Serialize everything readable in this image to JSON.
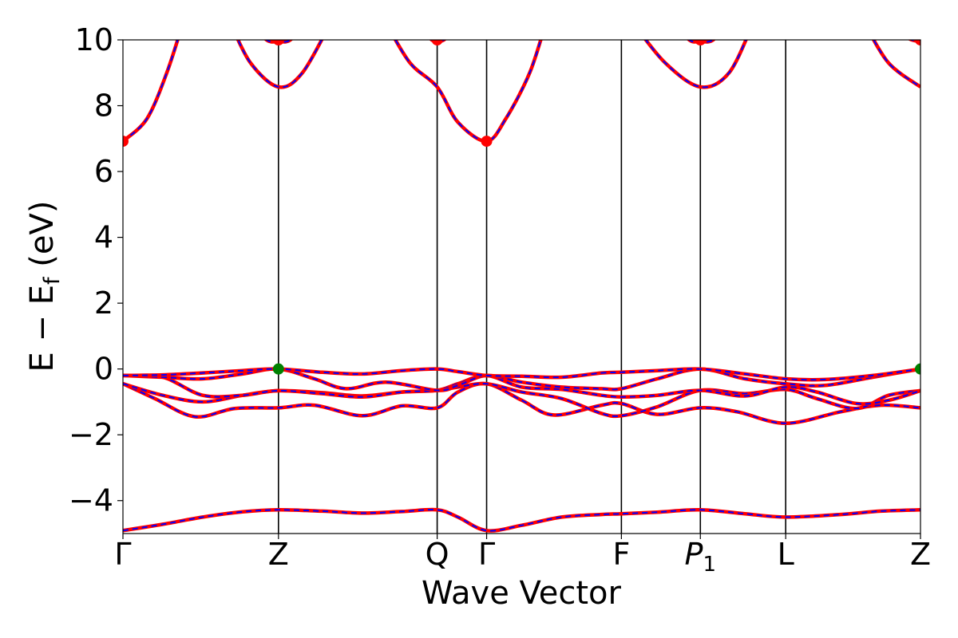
{
  "chart_data": {
    "type": "line",
    "xlabel": "Wave Vector",
    "ylabel": {
      "main": "E − E",
      "sub": "f",
      "unit": " (eV)"
    },
    "ylim": [
      -5,
      10
    ],
    "yticks": [
      -4,
      -2,
      0,
      2,
      4,
      6,
      8,
      10
    ],
    "ytick_labels": [
      "−4",
      "−2",
      "0",
      "2",
      "4",
      "6",
      "8",
      "10"
    ],
    "xlim": [
      0,
      1
    ],
    "kpoints": [
      {
        "x": 0.0,
        "label": "Γ"
      },
      {
        "x": 0.195,
        "label": "Z"
      },
      {
        "x": 0.394,
        "label": "Q"
      },
      {
        "x": 0.456,
        "label": "Γ"
      },
      {
        "x": 0.625,
        "label": "F"
      },
      {
        "x": 0.724,
        "label": "P1",
        "italic_base": "P",
        "subscript": "1"
      },
      {
        "x": 0.831,
        "label": "L"
      },
      {
        "x": 1.0,
        "label": "Z"
      }
    ],
    "line_styles": {
      "solid": "#ff0000",
      "dashed": "#0000ff"
    },
    "series": [
      {
        "values": [
          [
            0,
            -4.91
          ],
          [
            0.05,
            -4.72
          ],
          [
            0.1,
            -4.5
          ],
          [
            0.15,
            -4.34
          ],
          [
            0.195,
            -4.28
          ],
          [
            0.25,
            -4.32
          ],
          [
            0.3,
            -4.38
          ],
          [
            0.35,
            -4.33
          ],
          [
            0.394,
            -4.28
          ],
          [
            0.42,
            -4.5
          ],
          [
            0.456,
            -4.91
          ],
          [
            0.5,
            -4.75
          ],
          [
            0.55,
            -4.5
          ],
          [
            0.6,
            -4.42
          ],
          [
            0.625,
            -4.4
          ],
          [
            0.67,
            -4.35
          ],
          [
            0.724,
            -4.28
          ],
          [
            0.78,
            -4.4
          ],
          [
            0.831,
            -4.5
          ],
          [
            0.9,
            -4.42
          ],
          [
            0.95,
            -4.32
          ],
          [
            1.0,
            -4.28
          ]
        ]
      },
      {
        "values": [
          [
            0,
            -0.45
          ],
          [
            0.04,
            -0.9
          ],
          [
            0.09,
            -1.45
          ],
          [
            0.14,
            -1.2
          ],
          [
            0.195,
            -1.18
          ],
          [
            0.24,
            -1.1
          ],
          [
            0.3,
            -1.42
          ],
          [
            0.35,
            -1.12
          ],
          [
            0.394,
            -1.18
          ],
          [
            0.42,
            -0.7
          ],
          [
            0.456,
            -0.45
          ],
          [
            0.5,
            -0.95
          ],
          [
            0.54,
            -1.4
          ],
          [
            0.6,
            -1.1
          ],
          [
            0.625,
            -1.05
          ],
          [
            0.67,
            -1.38
          ],
          [
            0.724,
            -1.18
          ],
          [
            0.77,
            -1.3
          ],
          [
            0.831,
            -1.65
          ],
          [
            0.9,
            -1.3
          ],
          [
            0.95,
            -1.1
          ],
          [
            1.0,
            -1.18
          ]
        ]
      },
      {
        "values": [
          [
            0,
            -0.45
          ],
          [
            0.05,
            -0.8
          ],
          [
            0.1,
            -1.0
          ],
          [
            0.15,
            -0.8
          ],
          [
            0.195,
            -0.66
          ],
          [
            0.25,
            -0.72
          ],
          [
            0.3,
            -0.82
          ],
          [
            0.35,
            -0.7
          ],
          [
            0.394,
            -0.65
          ],
          [
            0.42,
            -0.55
          ],
          [
            0.456,
            -0.45
          ],
          [
            0.5,
            -0.7
          ],
          [
            0.55,
            -0.9
          ],
          [
            0.6,
            -1.35
          ],
          [
            0.625,
            -1.42
          ],
          [
            0.67,
            -1.15
          ],
          [
            0.724,
            -0.65
          ],
          [
            0.78,
            -0.75
          ],
          [
            0.831,
            -0.62
          ],
          [
            0.87,
            -0.9
          ],
          [
            0.92,
            -1.2
          ],
          [
            0.96,
            -0.8
          ],
          [
            1.0,
            -0.66
          ]
        ]
      },
      {
        "values": [
          [
            0,
            -0.2
          ],
          [
            0.05,
            -0.25
          ],
          [
            0.1,
            -0.8
          ],
          [
            0.15,
            -0.8
          ],
          [
            0.195,
            -0.66
          ],
          [
            0.25,
            -0.75
          ],
          [
            0.3,
            -0.85
          ],
          [
            0.35,
            -0.7
          ],
          [
            0.394,
            -0.65
          ],
          [
            0.42,
            -0.45
          ],
          [
            0.456,
            -0.2
          ],
          [
            0.5,
            -0.55
          ],
          [
            0.55,
            -0.62
          ],
          [
            0.6,
            -0.8
          ],
          [
            0.625,
            -0.85
          ],
          [
            0.67,
            -0.8
          ],
          [
            0.724,
            -0.65
          ],
          [
            0.78,
            -0.82
          ],
          [
            0.831,
            -0.55
          ],
          [
            0.87,
            -0.7
          ],
          [
            0.92,
            -1.05
          ],
          [
            0.96,
            -0.95
          ],
          [
            1.0,
            -0.66
          ]
        ]
      },
      {
        "values": [
          [
            0,
            -0.2
          ],
          [
            0.05,
            -0.25
          ],
          [
            0.1,
            -0.3
          ],
          [
            0.15,
            -0.15
          ],
          [
            0.195,
            0.0
          ],
          [
            0.24,
            -0.3
          ],
          [
            0.28,
            -0.6
          ],
          [
            0.33,
            -0.4
          ],
          [
            0.394,
            -0.65
          ],
          [
            0.42,
            -0.5
          ],
          [
            0.456,
            -0.2
          ],
          [
            0.5,
            -0.4
          ],
          [
            0.55,
            -0.55
          ],
          [
            0.6,
            -0.6
          ],
          [
            0.625,
            -0.6
          ],
          [
            0.67,
            -0.3
          ],
          [
            0.724,
            0.0
          ],
          [
            0.78,
            -0.3
          ],
          [
            0.831,
            -0.45
          ],
          [
            0.88,
            -0.5
          ],
          [
            0.94,
            -0.25
          ],
          [
            1.0,
            0.0
          ]
        ]
      },
      {
        "values": [
          [
            0,
            -0.2
          ],
          [
            0.05,
            -0.18
          ],
          [
            0.1,
            -0.12
          ],
          [
            0.15,
            -0.05
          ],
          [
            0.195,
            0.0
          ],
          [
            0.25,
            -0.1
          ],
          [
            0.3,
            -0.15
          ],
          [
            0.35,
            -0.05
          ],
          [
            0.394,
            0.0
          ],
          [
            0.42,
            -0.08
          ],
          [
            0.456,
            -0.2
          ],
          [
            0.5,
            -0.22
          ],
          [
            0.55,
            -0.25
          ],
          [
            0.6,
            -0.12
          ],
          [
            0.625,
            -0.1
          ],
          [
            0.67,
            -0.05
          ],
          [
            0.724,
            0.0
          ],
          [
            0.78,
            -0.15
          ],
          [
            0.831,
            -0.3
          ],
          [
            0.88,
            -0.32
          ],
          [
            0.94,
            -0.2
          ],
          [
            1.0,
            0.0
          ]
        ]
      },
      {
        "values": [
          [
            0,
            6.92
          ],
          [
            0.03,
            7.6
          ],
          [
            0.055,
            9.0
          ],
          [
            0.075,
            10.5
          ]
        ]
      },
      {
        "values": [
          [
            0.135,
            10.5
          ],
          [
            0.16,
            9.3
          ],
          [
            0.195,
            8.57
          ],
          [
            0.225,
            9.0
          ],
          [
            0.26,
            10.5
          ]
        ]
      },
      {
        "values": [
          [
            0.165,
            10.5
          ],
          [
            0.18,
            10.0
          ],
          [
            0.195,
            9.95
          ],
          [
            0.21,
            10.0
          ],
          [
            0.225,
            10.5
          ]
        ]
      },
      {
        "values": [
          [
            0.33,
            10.5
          ],
          [
            0.36,
            9.3
          ],
          [
            0.394,
            8.57
          ],
          [
            0.42,
            7.5
          ],
          [
            0.456,
            6.92
          ],
          [
            0.48,
            7.6
          ],
          [
            0.51,
            9.0
          ],
          [
            0.53,
            10.5
          ]
        ]
      },
      {
        "values": [
          [
            0.375,
            10.5
          ],
          [
            0.385,
            10.05
          ],
          [
            0.394,
            9.95
          ],
          [
            0.405,
            10.05
          ],
          [
            0.415,
            10.5
          ]
        ]
      },
      {
        "values": [
          [
            0.64,
            10.5
          ],
          [
            0.68,
            9.3
          ],
          [
            0.724,
            8.57
          ],
          [
            0.76,
            9.0
          ],
          [
            0.79,
            10.5
          ]
        ]
      },
      {
        "values": [
          [
            0.695,
            10.5
          ],
          [
            0.71,
            10.0
          ],
          [
            0.724,
            9.95
          ],
          [
            0.74,
            10.0
          ],
          [
            0.755,
            10.5
          ]
        ]
      },
      {
        "values": [
          [
            0.93,
            10.5
          ],
          [
            0.96,
            9.3
          ],
          [
            1.0,
            8.57
          ]
        ]
      },
      {
        "values": [
          [
            0.97,
            10.5
          ],
          [
            0.985,
            10.05
          ],
          [
            1.0,
            9.95
          ]
        ]
      }
    ],
    "markers": [
      {
        "x": 0.0,
        "y": 6.92,
        "color": "#ff0000"
      },
      {
        "x": 0.456,
        "y": 6.92,
        "color": "#ff0000"
      },
      {
        "x": 0.195,
        "y": 10.0,
        "color": "#ff0000"
      },
      {
        "x": 0.394,
        "y": 10.0,
        "color": "#ff0000"
      },
      {
        "x": 0.724,
        "y": 10.0,
        "color": "#ff0000"
      },
      {
        "x": 1.0,
        "y": 10.0,
        "color": "#ff0000"
      },
      {
        "x": 0.195,
        "y": 0.0,
        "color": "#008000"
      },
      {
        "x": 1.0,
        "y": 0.0,
        "color": "#008000"
      }
    ]
  }
}
